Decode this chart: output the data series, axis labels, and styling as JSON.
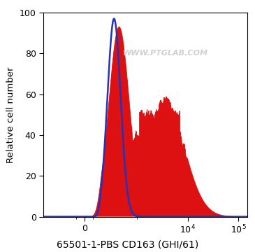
{
  "title": "65501-1-PBS CD163 (GHI/61)",
  "ylabel": "Relative cell number",
  "ylim": [
    0,
    100
  ],
  "yticks": [
    0,
    20,
    40,
    60,
    80,
    100
  ],
  "watermark": "WWW.PTGLAB.COM",
  "watermark_color": "#d0d0d0",
  "background_color": "#ffffff",
  "blue_color": "#2233bb",
  "red_color": "#dd1111",
  "title_fontsize": 10,
  "ylabel_fontsize": 9.5,
  "tick_fontsize": 9,
  "blue_peak_log": 2.55,
  "blue_sigma_log": 0.13,
  "blue_amp": 97,
  "red_peak1_log": 2.65,
  "red_sigma1_log": 0.2,
  "red_amp1": 93,
  "red_peak2_log": 3.55,
  "red_sigma2_log": 0.38,
  "red_amp2": 57,
  "red_shoulder_log": 3.0,
  "red_shoulder_amp": 40,
  "red_shoulder_sigma": 0.25
}
